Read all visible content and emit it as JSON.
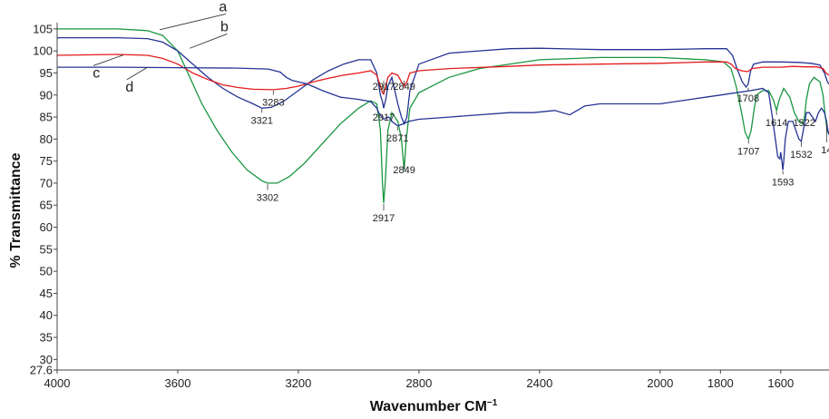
{
  "chart_data": {
    "type": "line",
    "xlabel": "Wavenumber CM",
    "xlabel_sup": "−1",
    "ylabel": "% Transmittance",
    "xlim": [
      4000,
      1440
    ],
    "ylim": [
      27.6,
      106
    ],
    "x_reversed": true,
    "grid": false,
    "x_ticks": [
      4000,
      3600,
      3200,
      2800,
      2400,
      2000,
      1800,
      1600
    ],
    "y_ticks": [
      {
        "value": 105,
        "label": "105"
      },
      {
        "value": 100,
        "label": "100"
      },
      {
        "value": 95,
        "label": "95"
      },
      {
        "value": 90,
        "label": "90"
      },
      {
        "value": 85,
        "label": "85"
      },
      {
        "value": 80,
        "label": "80"
      },
      {
        "value": 75,
        "label": "75"
      },
      {
        "value": 70,
        "label": "70"
      },
      {
        "value": 65,
        "label": "65"
      },
      {
        "value": 60,
        "label": "60"
      },
      {
        "value": 55,
        "label": "55"
      },
      {
        "value": 50,
        "label": "50"
      },
      {
        "value": 45,
        "label": "45"
      },
      {
        "value": 40,
        "label": "40"
      },
      {
        "value": 35,
        "label": "35"
      },
      {
        "value": 30,
        "label": "30"
      },
      {
        "value": 27.6,
        "label": "27.6"
      }
    ],
    "series": [
      {
        "name": "a",
        "color": "#1a9641",
        "points": [
          [
            4000,
            105
          ],
          [
            3800,
            105
          ],
          [
            3700,
            104.6
          ],
          [
            3650,
            103.5
          ],
          [
            3600,
            100
          ],
          [
            3560,
            94
          ],
          [
            3520,
            88
          ],
          [
            3470,
            82
          ],
          [
            3420,
            77
          ],
          [
            3370,
            73
          ],
          [
            3320,
            70.5
          ],
          [
            3302,
            70
          ],
          [
            3270,
            70
          ],
          [
            3230,
            71.5
          ],
          [
            3180,
            74.5
          ],
          [
            3120,
            79
          ],
          [
            3060,
            83.5
          ],
          [
            3000,
            87
          ],
          [
            2960,
            88.7
          ],
          [
            2940,
            88
          ],
          [
            2928,
            82
          ],
          [
            2921,
            70
          ],
          [
            2917,
            65.5
          ],
          [
            2912,
            70
          ],
          [
            2903,
            82
          ],
          [
            2890,
            86
          ],
          [
            2870,
            84
          ],
          [
            2858,
            80
          ],
          [
            2849,
            73
          ],
          [
            2842,
            80
          ],
          [
            2830,
            87
          ],
          [
            2800,
            90.5
          ],
          [
            2700,
            94
          ],
          [
            2600,
            96
          ],
          [
            2400,
            98
          ],
          [
            2200,
            98.5
          ],
          [
            2000,
            98.5
          ],
          [
            1850,
            98
          ],
          [
            1790,
            97.5
          ],
          [
            1765,
            96
          ],
          [
            1748,
            92
          ],
          [
            1730,
            86
          ],
          [
            1718,
            81.5
          ],
          [
            1707,
            80
          ],
          [
            1698,
            82
          ],
          [
            1690,
            86
          ],
          [
            1680,
            90
          ],
          [
            1660,
            91
          ],
          [
            1640,
            91
          ],
          [
            1625,
            89
          ],
          [
            1614,
            86.5
          ],
          [
            1605,
            89
          ],
          [
            1590,
            91.5
          ],
          [
            1570,
            89.5
          ],
          [
            1555,
            86
          ],
          [
            1540,
            84
          ],
          [
            1530,
            83.5
          ],
          [
            1522,
            84.5
          ],
          [
            1515,
            89
          ],
          [
            1505,
            92.5
          ],
          [
            1490,
            94
          ],
          [
            1470,
            93
          ],
          [
            1460,
            90
          ],
          [
            1452,
            85
          ],
          [
            1446,
            82
          ],
          [
            1440,
            81
          ]
        ]
      },
      {
        "name": "b",
        "color": "#253494",
        "points": [
          [
            4000,
            103
          ],
          [
            3800,
            103
          ],
          [
            3700,
            102.8
          ],
          [
            3650,
            102
          ],
          [
            3600,
            100
          ],
          [
            3550,
            97
          ],
          [
            3500,
            94
          ],
          [
            3450,
            91.5
          ],
          [
            3400,
            89.5
          ],
          [
            3350,
            88
          ],
          [
            3321,
            87
          ],
          [
            3290,
            87.2
          ],
          [
            3250,
            88.5
          ],
          [
            3200,
            91
          ],
          [
            3150,
            93.5
          ],
          [
            3100,
            95.5
          ],
          [
            3050,
            97
          ],
          [
            3000,
            98
          ],
          [
            2960,
            98
          ],
          [
            2940,
            95
          ],
          [
            2928,
            90
          ],
          [
            2921,
            88.5
          ],
          [
            2917,
            87
          ],
          [
            2910,
            89
          ],
          [
            2903,
            92
          ],
          [
            2890,
            94
          ],
          [
            2870,
            88
          ],
          [
            2858,
            85
          ],
          [
            2849,
            83.5
          ],
          [
            2840,
            85
          ],
          [
            2830,
            91
          ],
          [
            2800,
            97
          ],
          [
            2700,
            99.5
          ],
          [
            2500,
            100.5
          ],
          [
            2400,
            100.6
          ],
          [
            2200,
            100.3
          ],
          [
            2000,
            100.3
          ],
          [
            1850,
            100.5
          ],
          [
            1780,
            100.5
          ],
          [
            1760,
            99
          ],
          [
            1745,
            96
          ],
          [
            1728,
            93
          ],
          [
            1715,
            91.8
          ],
          [
            1708,
            92.5
          ],
          [
            1700,
            95.5
          ],
          [
            1690,
            97
          ],
          [
            1660,
            97.5
          ],
          [
            1600,
            97.5
          ],
          [
            1540,
            97.4
          ],
          [
            1500,
            97.2
          ],
          [
            1470,
            96.8
          ],
          [
            1455,
            95
          ],
          [
            1445,
            93
          ],
          [
            1440,
            92.5
          ]
        ]
      },
      {
        "name": "c",
        "color": "#e31a1c",
        "points": [
          [
            4000,
            99
          ],
          [
            3800,
            99.2
          ],
          [
            3700,
            99
          ],
          [
            3650,
            98.3
          ],
          [
            3600,
            97
          ],
          [
            3550,
            95
          ],
          [
            3500,
            93.5
          ],
          [
            3450,
            92.3
          ],
          [
            3400,
            91.7
          ],
          [
            3350,
            91.3
          ],
          [
            3283,
            91.2
          ],
          [
            3240,
            91.5
          ],
          [
            3200,
            92
          ],
          [
            3150,
            93
          ],
          [
            3100,
            93.8
          ],
          [
            3050,
            94.5
          ],
          [
            3000,
            95
          ],
          [
            2960,
            95.5
          ],
          [
            2940,
            94.5
          ],
          [
            2928,
            92
          ],
          [
            2921,
            90.5
          ],
          [
            2917,
            90.2
          ],
          [
            2910,
            92
          ],
          [
            2903,
            94
          ],
          [
            2890,
            95
          ],
          [
            2870,
            94.5
          ],
          [
            2858,
            93
          ],
          [
            2849,
            92
          ],
          [
            2840,
            93
          ],
          [
            2830,
            95
          ],
          [
            2800,
            95.5
          ],
          [
            2700,
            96
          ],
          [
            2500,
            96.5
          ],
          [
            2400,
            96.8
          ],
          [
            2200,
            97
          ],
          [
            2000,
            97.2
          ],
          [
            1850,
            97.5
          ],
          [
            1780,
            97.5
          ],
          [
            1765,
            97
          ],
          [
            1750,
            96
          ],
          [
            1730,
            95.5
          ],
          [
            1710,
            95.3
          ],
          [
            1695,
            96
          ],
          [
            1660,
            96.3
          ],
          [
            1614,
            96.3
          ],
          [
            1600,
            96.3
          ],
          [
            1560,
            96.5
          ],
          [
            1520,
            96.4
          ],
          [
            1480,
            96.4
          ],
          [
            1460,
            96
          ],
          [
            1450,
            95
          ],
          [
            1440,
            94.5
          ]
        ]
      },
      {
        "name": "d",
        "color": "#253494",
        "points": [
          [
            4000,
            96.3
          ],
          [
            3800,
            96.3
          ],
          [
            3600,
            96.2
          ],
          [
            3400,
            96.1
          ],
          [
            3300,
            95.9
          ],
          [
            3260,
            95.2
          ],
          [
            3240,
            94
          ],
          [
            3220,
            93.3
          ],
          [
            3200,
            93
          ],
          [
            3170,
            92.5
          ],
          [
            3120,
            91
          ],
          [
            3060,
            89.5
          ],
          [
            3000,
            89
          ],
          [
            2960,
            88.5
          ],
          [
            2940,
            87
          ],
          [
            2930,
            85.5
          ],
          [
            2921,
            85
          ],
          [
            2917,
            84.5
          ],
          [
            2910,
            84.8
          ],
          [
            2900,
            85
          ],
          [
            2890,
            84
          ],
          [
            2880,
            83.5
          ],
          [
            2871,
            83
          ],
          [
            2862,
            83.2
          ],
          [
            2849,
            83.5
          ],
          [
            2835,
            84
          ],
          [
            2800,
            84.5
          ],
          [
            2700,
            85
          ],
          [
            2600,
            85.5
          ],
          [
            2500,
            86
          ],
          [
            2420,
            86
          ],
          [
            2350,
            86.5
          ],
          [
            2300,
            85.5
          ],
          [
            2250,
            87.5
          ],
          [
            2200,
            88
          ],
          [
            2100,
            88
          ],
          [
            2000,
            88
          ],
          [
            1900,
            89
          ],
          [
            1850,
            89.5
          ],
          [
            1800,
            90
          ],
          [
            1700,
            91
          ],
          [
            1660,
            91.5
          ],
          [
            1640,
            90.5
          ],
          [
            1630,
            86
          ],
          [
            1620,
            81
          ],
          [
            1610,
            76
          ],
          [
            1603,
            75.5
          ],
          [
            1600,
            77
          ],
          [
            1596,
            75
          ],
          [
            1593,
            73
          ],
          [
            1590,
            75
          ],
          [
            1585,
            80
          ],
          [
            1575,
            84
          ],
          [
            1560,
            84
          ],
          [
            1550,
            82
          ],
          [
            1540,
            80
          ],
          [
            1532,
            79.5
          ],
          [
            1525,
            82
          ],
          [
            1515,
            86
          ],
          [
            1505,
            86
          ],
          [
            1495,
            85
          ],
          [
            1485,
            84
          ],
          [
            1475,
            86
          ],
          [
            1465,
            87
          ],
          [
            1455,
            86
          ],
          [
            1448,
            84
          ],
          [
            1444,
            82
          ],
          [
            1440,
            81
          ]
        ]
      }
    ],
    "annotations": [
      {
        "text": "3321",
        "x": 3321,
        "y": 87,
        "label_y": 83.5
      },
      {
        "text": "3283",
        "x": 3283,
        "y": 91.2,
        "label_y": 87.6
      },
      {
        "text": "3302",
        "x": 3302,
        "y": 70,
        "label_y": 66
      },
      {
        "text": "2917",
        "x": 2917,
        "y": 90.2,
        "label_y": 91.2
      },
      {
        "text": "2849",
        "x": 2849,
        "y": 92,
        "label_y": 91.2
      },
      {
        "text": "2917",
        "x": 2917,
        "y": 87,
        "label_y": 84.2
      },
      {
        "text": "2871",
        "x": 2871,
        "y": 83,
        "label_y": 79.5
      },
      {
        "text": "2849",
        "x": 2849,
        "y": 73,
        "label_y": 72.3
      },
      {
        "text": "2917",
        "x": 2917,
        "y": 65.5,
        "label_y": 61.3
      },
      {
        "text": "1708",
        "x": 1708,
        "y": 91.8,
        "label_y": 88.5
      },
      {
        "text": "1707",
        "x": 1707,
        "y": 80,
        "label_y": 76.5
      },
      {
        "text": "1614",
        "x": 1614,
        "y": 86.5,
        "label_y": 83
      },
      {
        "text": "1593",
        "x": 1593,
        "y": 73,
        "label_y": 69.5
      },
      {
        "text": "1522",
        "x": 1522,
        "y": 84.5,
        "label_y": 83
      },
      {
        "text": "1532",
        "x": 1532,
        "y": 79.5,
        "label_y": 75.8
      },
      {
        "text": "14",
        "x": 1448,
        "y": 84,
        "label_y": 76.8
      }
    ],
    "curve_labels": [
      {
        "text": "a",
        "x": 3450,
        "y": 109,
        "to_x": 3660,
        "to_y": 104.8
      },
      {
        "text": "b",
        "x": 3445,
        "y": 104.5,
        "to_x": 3560,
        "to_y": 100.6
      },
      {
        "text": "c",
        "x": 3870,
        "y": 94,
        "to_x": 3780,
        "to_y": 99.1
      },
      {
        "text": "d",
        "x": 3760,
        "y": 90.8,
        "to_x": 3700,
        "to_y": 96.3
      }
    ]
  }
}
